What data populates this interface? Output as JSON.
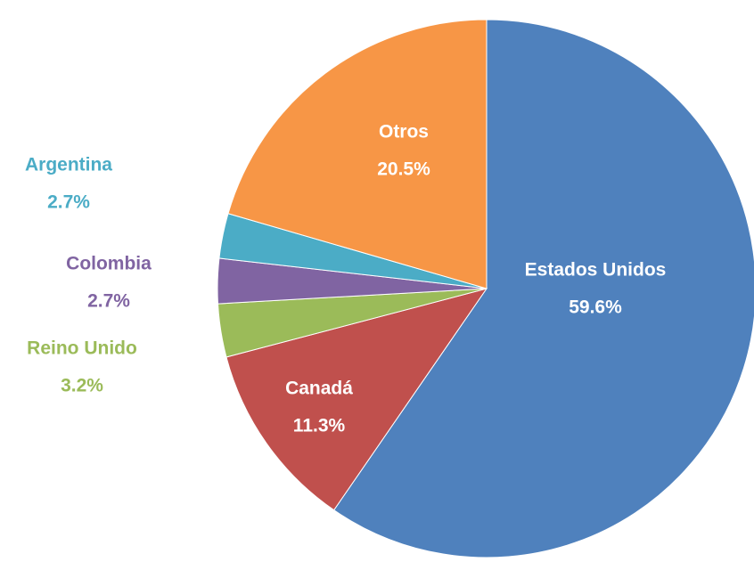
{
  "chart_data": {
    "type": "pie",
    "categories": [
      "Estados Unidos",
      "Canadá",
      "Reino Unido",
      "Colombia",
      "Argentina",
      "Otros"
    ],
    "values": [
      59.6,
      11.3,
      3.2,
      2.7,
      2.7,
      20.5
    ],
    "value_labels": [
      "59.6%",
      "11.3%",
      "3.2%",
      "2.7%",
      "2.7%",
      "20.5%"
    ],
    "colors": [
      "#4f81bd",
      "#c0504d",
      "#9bbb59",
      "#8064a2",
      "#4bacc6",
      "#f79646"
    ]
  }
}
